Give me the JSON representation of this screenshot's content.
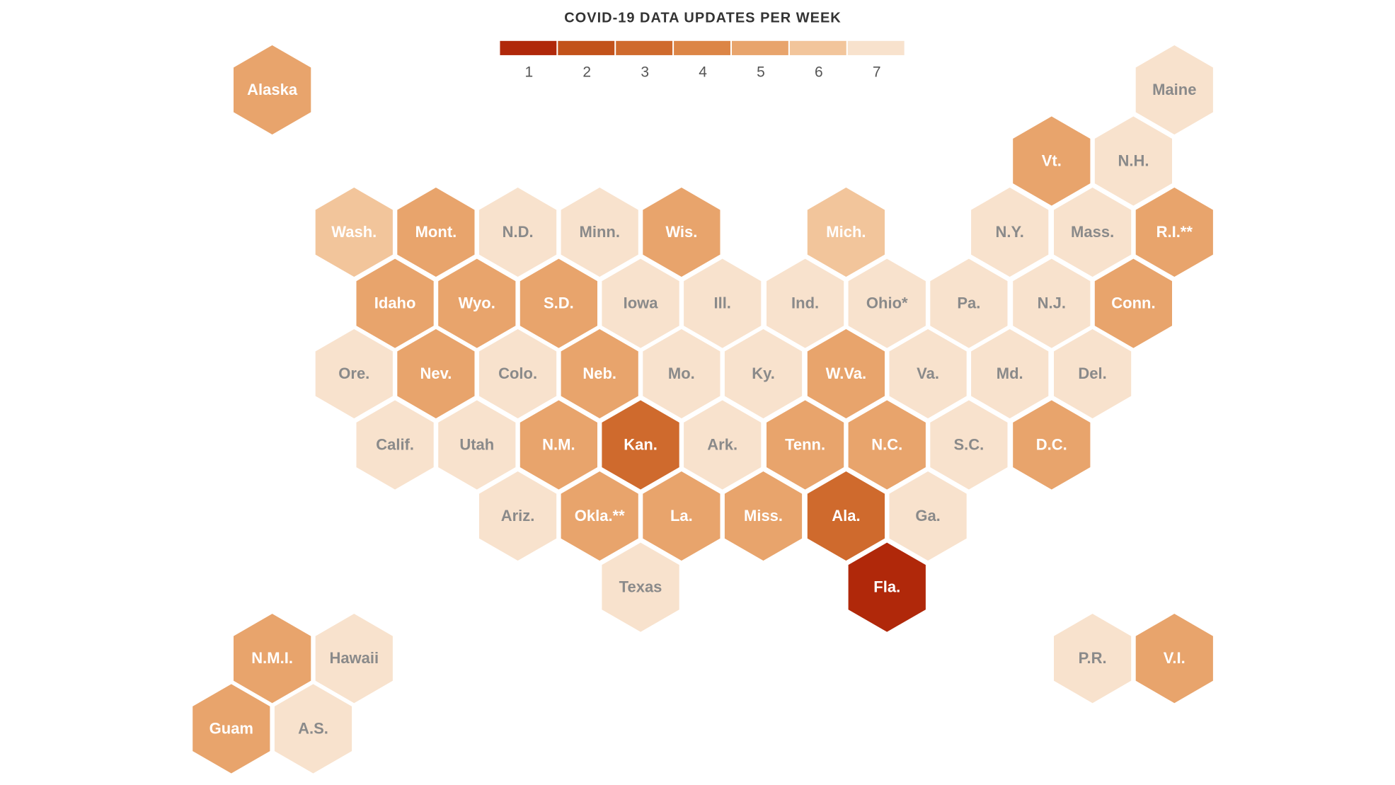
{
  "chart_data": {
    "type": "hexmap",
    "title": "COVID-19 DATA UPDATES PER WEEK",
    "legend": {
      "values": [
        1,
        2,
        3,
        4,
        5,
        6,
        7
      ],
      "colors": [
        "#b0280a",
        "#c2521a",
        "#cf6a2d",
        "#dc8546",
        "#e8a46c",
        "#f2c59b",
        "#f8e2cd"
      ]
    },
    "states": [
      {
        "name": "Alaska",
        "value": 5
      },
      {
        "name": "Maine",
        "value": 7
      },
      {
        "name": "Vt.",
        "value": 5
      },
      {
        "name": "N.H.",
        "value": 7
      },
      {
        "name": "Wash.",
        "value": 6
      },
      {
        "name": "Mont.",
        "value": 5
      },
      {
        "name": "N.D.",
        "value": 7
      },
      {
        "name": "Minn.",
        "value": 7
      },
      {
        "name": "Wis.",
        "value": 5
      },
      {
        "name": "Mich.",
        "value": 6
      },
      {
        "name": "N.Y.",
        "value": 7
      },
      {
        "name": "Mass.",
        "value": 7
      },
      {
        "name": "R.I.**",
        "value": 5
      },
      {
        "name": "Idaho",
        "value": 5
      },
      {
        "name": "Wyo.",
        "value": 5
      },
      {
        "name": "S.D.",
        "value": 5
      },
      {
        "name": "Iowa",
        "value": 7
      },
      {
        "name": "Ill.",
        "value": 7
      },
      {
        "name": "Ind.",
        "value": 7
      },
      {
        "name": "Ohio*",
        "value": 7
      },
      {
        "name": "Pa.",
        "value": 7
      },
      {
        "name": "N.J.",
        "value": 7
      },
      {
        "name": "Conn.",
        "value": 5
      },
      {
        "name": "Ore.",
        "value": 7
      },
      {
        "name": "Nev.",
        "value": 5
      },
      {
        "name": "Colo.",
        "value": 7
      },
      {
        "name": "Neb.",
        "value": 5
      },
      {
        "name": "Mo.",
        "value": 7
      },
      {
        "name": "Ky.",
        "value": 7
      },
      {
        "name": "W.Va.",
        "value": 5
      },
      {
        "name": "Va.",
        "value": 7
      },
      {
        "name": "Md.",
        "value": 7
      },
      {
        "name": "Del.",
        "value": 7
      },
      {
        "name": "Calif.",
        "value": 7
      },
      {
        "name": "Utah",
        "value": 7
      },
      {
        "name": "N.M.",
        "value": 5
      },
      {
        "name": "Kan.",
        "value": 3
      },
      {
        "name": "Ark.",
        "value": 7
      },
      {
        "name": "Tenn.",
        "value": 5
      },
      {
        "name": "N.C.",
        "value": 5
      },
      {
        "name": "S.C.",
        "value": 7
      },
      {
        "name": "D.C.",
        "value": 5
      },
      {
        "name": "Ariz.",
        "value": 7
      },
      {
        "name": "Okla.**",
        "value": 5
      },
      {
        "name": "La.",
        "value": 5
      },
      {
        "name": "Miss.",
        "value": 5
      },
      {
        "name": "Ala.",
        "value": 3
      },
      {
        "name": "Ga.",
        "value": 7
      },
      {
        "name": "Texas",
        "value": 7
      },
      {
        "name": "Fla.",
        "value": 1
      },
      {
        "name": "N.M.I.",
        "value": 5
      },
      {
        "name": "Hawaii",
        "value": 7
      },
      {
        "name": "P.R.",
        "value": 7
      },
      {
        "name": "V.I.",
        "value": 5
      },
      {
        "name": "Guam",
        "value": 5
      },
      {
        "name": "A.S.",
        "value": 7
      }
    ]
  }
}
